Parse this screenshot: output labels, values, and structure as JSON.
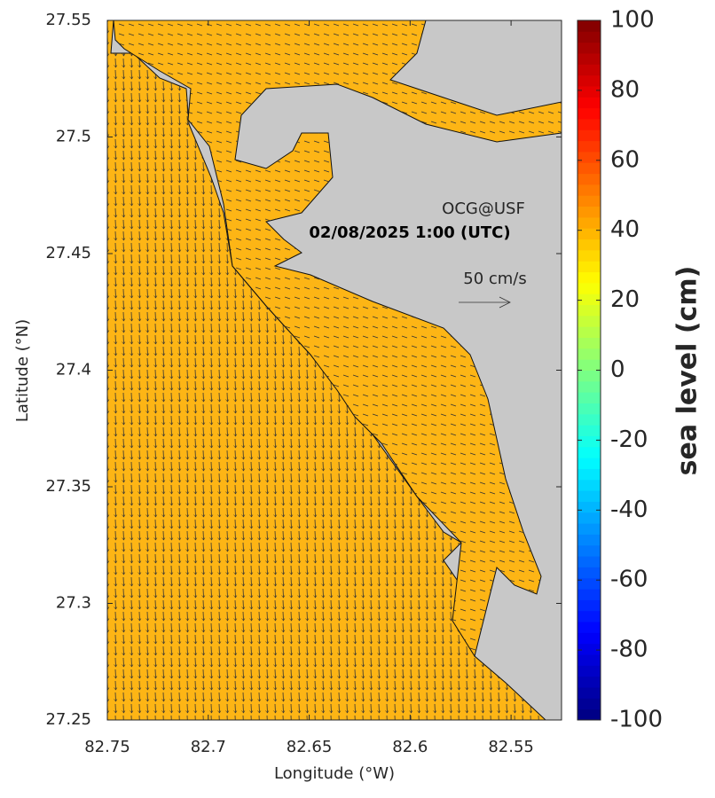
{
  "map": {
    "annotations": {
      "credit": "OCG@USF",
      "timestamp": "02/08/2025 1:00 (UTC)",
      "scale_label": "50 cm/s"
    },
    "x_axis": {
      "label": "Longitude (°W)",
      "lim": [
        82.75,
        82.525
      ],
      "ticks": [
        82.75,
        82.7,
        82.65,
        82.6,
        82.55
      ]
    },
    "y_axis": {
      "label": "Latitude (°N)",
      "lim": [
        27.25,
        27.55
      ],
      "ticks": [
        27.25,
        27.3,
        27.35,
        27.4,
        27.45,
        27.5,
        27.55
      ]
    },
    "colorbar": {
      "label": "sea level (cm)",
      "lim": [
        -100,
        100
      ],
      "ticks": [
        -100,
        -80,
        -60,
        -40,
        -20,
        0,
        20,
        40,
        60,
        80,
        100
      ]
    }
  }
}
